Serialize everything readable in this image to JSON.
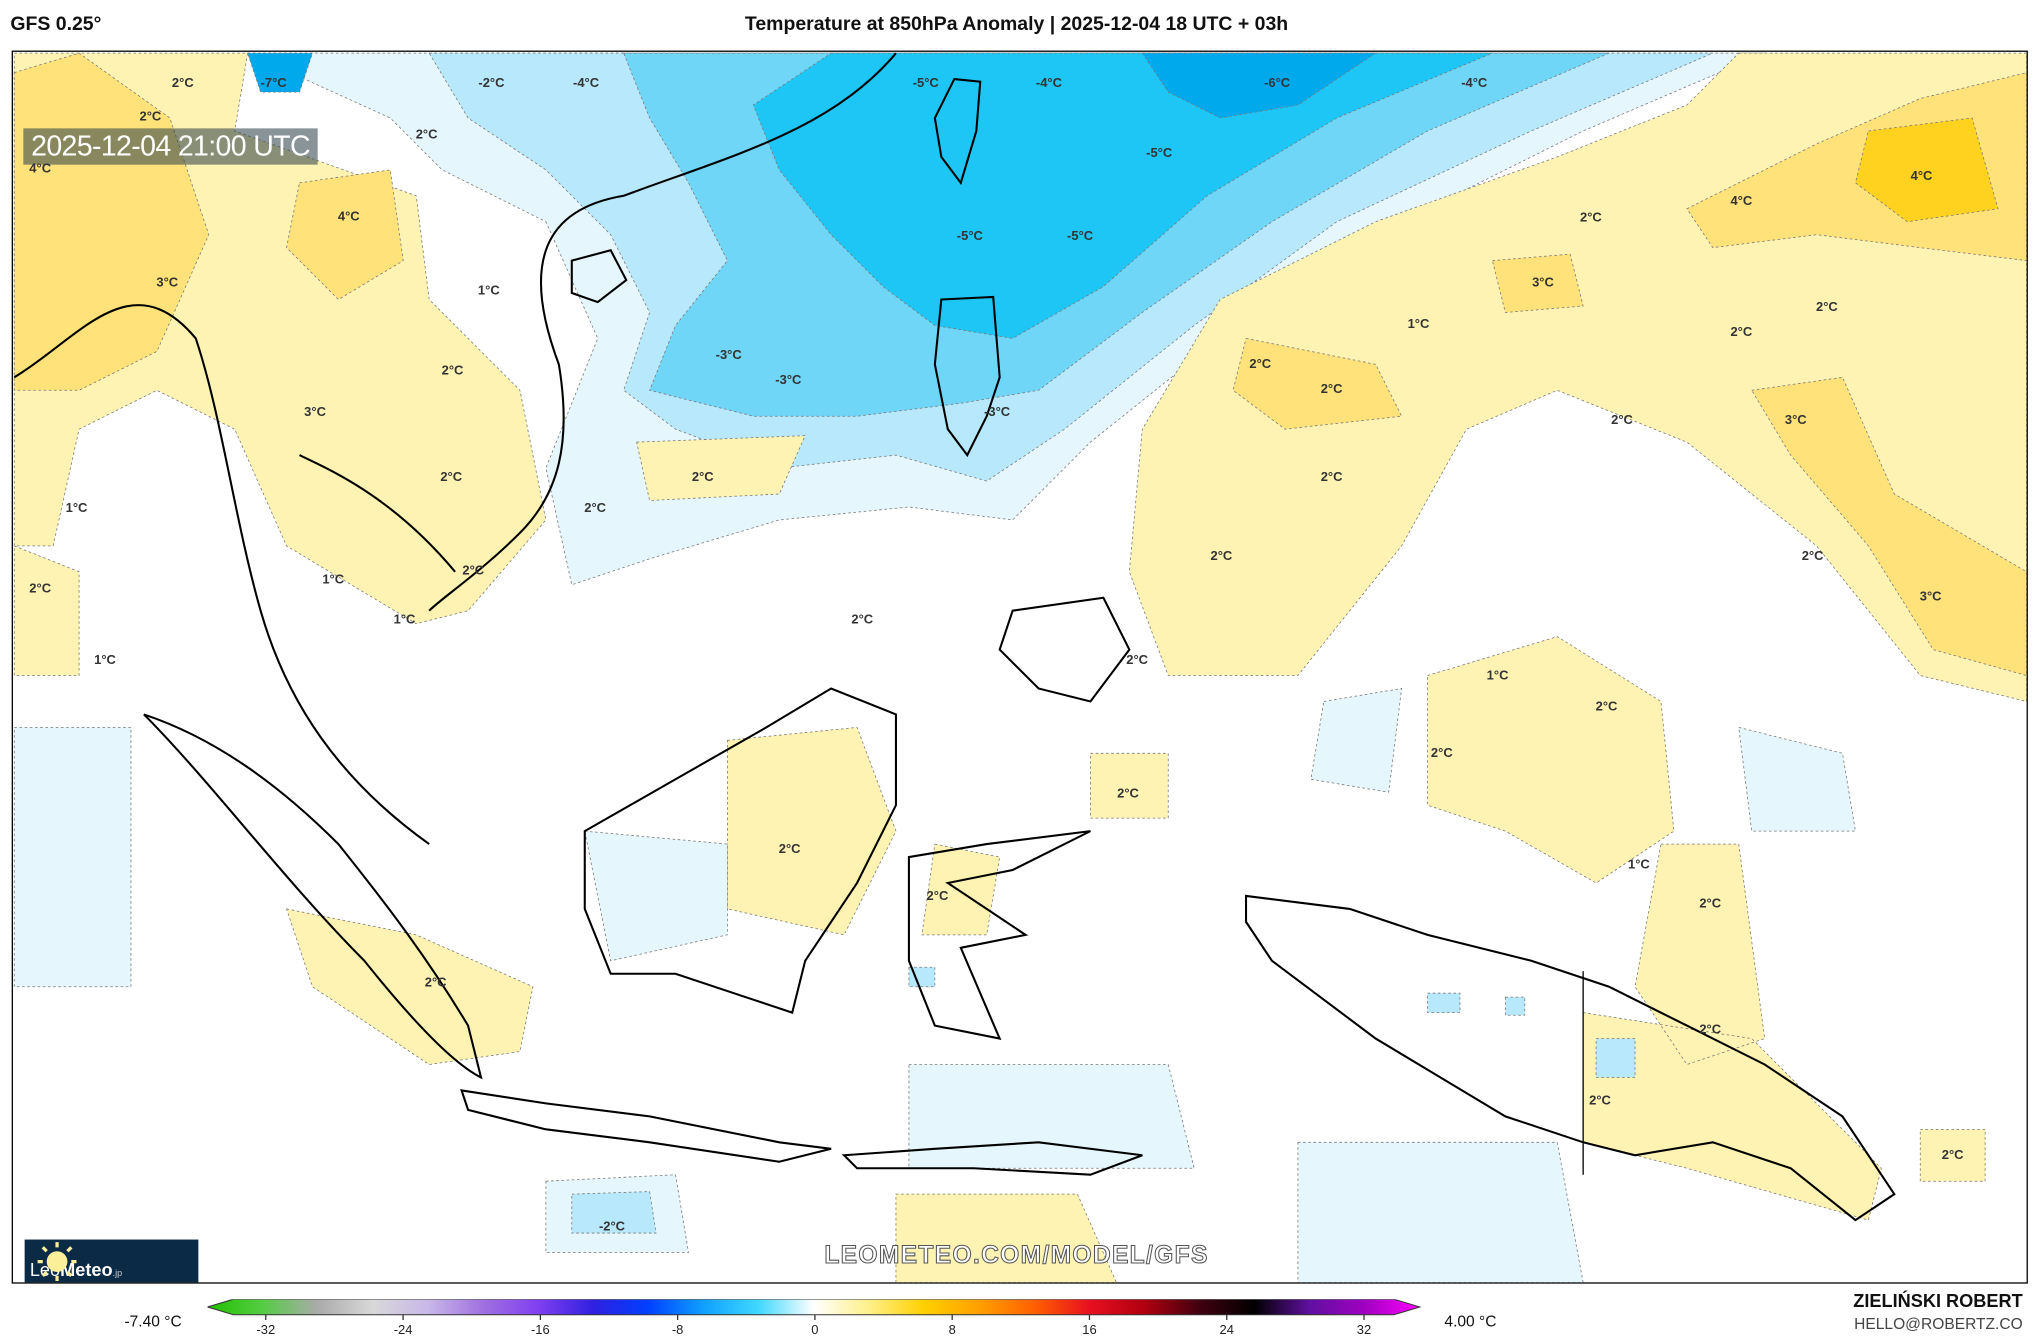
{
  "header": {
    "model": "GFS 0.25°",
    "title": "Temperature at 850hPa Anomaly | 2025-12-04 18 UTC + 03h"
  },
  "map": {
    "valid_time": "2025-12-04 21:00 UTC",
    "watermark": "LEOMETEO.COM/MODEL/GFS",
    "logo": {
      "name_light": "Leo",
      "name_bold": "Meteo",
      "suffix": ".jp",
      "icon": "sun-icon"
    },
    "region": "Southeast Asia / Maritime Continent",
    "contour_labels": [
      "2°C",
      "-7°C",
      "2°C",
      "-2°C",
      "-4°C",
      "-5°C",
      "-4°C",
      "-6°C",
      "-4°C",
      "-5°C",
      "-5°C",
      "-5°C",
      "2°C",
      "4°C",
      "4°C",
      "3°C",
      "1°C",
      "2°C",
      "4°C",
      "4°C",
      "3°C",
      "1°C",
      "2°C",
      "2°C",
      "2°C",
      "2°C",
      "2°C",
      "3°C",
      "-3°C",
      "-3°C",
      "3°C",
      "2°C",
      "-3°C",
      "2°C",
      "2°C",
      "2°C",
      "2°C",
      "1°C",
      "2°C",
      "2°C",
      "2°C",
      "1°C",
      "2°C",
      "1°C",
      "2°C",
      "3°C",
      "1°C",
      "2°C",
      "1°C",
      "2°C",
      "2°C",
      "2°C",
      "2°C",
      "1°C",
      "2°C",
      "2°C",
      "2°C",
      "2°C",
      "2°C",
      "2°C",
      "-2°C"
    ]
  },
  "colorbar": {
    "min_label": "-7.40 °C",
    "max_label": "4.00 °C",
    "ticks": [
      "-32",
      "-24",
      "-16",
      "-8",
      "0",
      "8",
      "16",
      "24",
      "32"
    ],
    "colors": [
      "#22c000",
      "#55cc44",
      "#aaaaaa",
      "#d8d8d8",
      "#c8b8e8",
      "#a070e0",
      "#8040f0",
      "#3020e0",
      "#0040ff",
      "#10a0ff",
      "#40d8ff",
      "#ffffff",
      "#fff08a",
      "#ffd000",
      "#ffa000",
      "#ff6000",
      "#e81020",
      "#b00010",
      "#400010",
      "#000000",
      "#6010a0",
      "#a000c0",
      "#ff00ff"
    ]
  },
  "credits": {
    "author": "ZIELIŃSKI ROBERT",
    "email": "HELLO@ROBERTZ.CO"
  },
  "legend_colors": {
    "cold_light": "#e6f6fd",
    "cold_mid": "#b8e8fb",
    "cold": "#6fd6f7",
    "cold_deep": "#1ec6f5",
    "cold_deepest": "#00a8ec",
    "warm_light": "#fff3b3",
    "warm": "#ffe27a",
    "warm_strong": "#ffd21f"
  }
}
